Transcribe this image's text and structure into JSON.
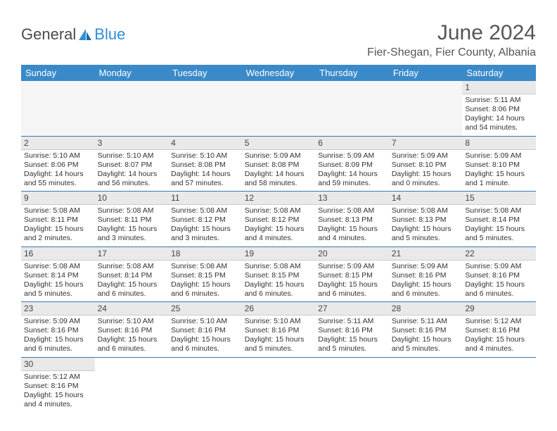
{
  "logo": {
    "text1": "General",
    "text2": "Blue"
  },
  "title": "June 2024",
  "location": "Fier-Shegan, Fier County, Albania",
  "daysOfWeek": [
    "Sunday",
    "Monday",
    "Tuesday",
    "Wednesday",
    "Thursday",
    "Friday",
    "Saturday"
  ],
  "colors": {
    "header_bg": "#3a8ac9",
    "header_fg": "#ffffff",
    "row_border": "#3a7ab0",
    "daynum_bg": "#e9e9e9",
    "text": "#333333"
  },
  "weeks": [
    [
      null,
      null,
      null,
      null,
      null,
      null,
      {
        "n": "1",
        "sunrise": "5:11 AM",
        "sunset": "8:06 PM",
        "daylight": "14 hours and 54 minutes."
      }
    ],
    [
      {
        "n": "2",
        "sunrise": "5:10 AM",
        "sunset": "8:06 PM",
        "daylight": "14 hours and 55 minutes."
      },
      {
        "n": "3",
        "sunrise": "5:10 AM",
        "sunset": "8:07 PM",
        "daylight": "14 hours and 56 minutes."
      },
      {
        "n": "4",
        "sunrise": "5:10 AM",
        "sunset": "8:08 PM",
        "daylight": "14 hours and 57 minutes."
      },
      {
        "n": "5",
        "sunrise": "5:09 AM",
        "sunset": "8:08 PM",
        "daylight": "14 hours and 58 minutes."
      },
      {
        "n": "6",
        "sunrise": "5:09 AM",
        "sunset": "8:09 PM",
        "daylight": "14 hours and 59 minutes."
      },
      {
        "n": "7",
        "sunrise": "5:09 AM",
        "sunset": "8:10 PM",
        "daylight": "15 hours and 0 minutes."
      },
      {
        "n": "8",
        "sunrise": "5:09 AM",
        "sunset": "8:10 PM",
        "daylight": "15 hours and 1 minute."
      }
    ],
    [
      {
        "n": "9",
        "sunrise": "5:08 AM",
        "sunset": "8:11 PM",
        "daylight": "15 hours and 2 minutes."
      },
      {
        "n": "10",
        "sunrise": "5:08 AM",
        "sunset": "8:11 PM",
        "daylight": "15 hours and 3 minutes."
      },
      {
        "n": "11",
        "sunrise": "5:08 AM",
        "sunset": "8:12 PM",
        "daylight": "15 hours and 3 minutes."
      },
      {
        "n": "12",
        "sunrise": "5:08 AM",
        "sunset": "8:12 PM",
        "daylight": "15 hours and 4 minutes."
      },
      {
        "n": "13",
        "sunrise": "5:08 AM",
        "sunset": "8:13 PM",
        "daylight": "15 hours and 4 minutes."
      },
      {
        "n": "14",
        "sunrise": "5:08 AM",
        "sunset": "8:13 PM",
        "daylight": "15 hours and 5 minutes."
      },
      {
        "n": "15",
        "sunrise": "5:08 AM",
        "sunset": "8:14 PM",
        "daylight": "15 hours and 5 minutes."
      }
    ],
    [
      {
        "n": "16",
        "sunrise": "5:08 AM",
        "sunset": "8:14 PM",
        "daylight": "15 hours and 5 minutes."
      },
      {
        "n": "17",
        "sunrise": "5:08 AM",
        "sunset": "8:14 PM",
        "daylight": "15 hours and 6 minutes."
      },
      {
        "n": "18",
        "sunrise": "5:08 AM",
        "sunset": "8:15 PM",
        "daylight": "15 hours and 6 minutes."
      },
      {
        "n": "19",
        "sunrise": "5:08 AM",
        "sunset": "8:15 PM",
        "daylight": "15 hours and 6 minutes."
      },
      {
        "n": "20",
        "sunrise": "5:09 AM",
        "sunset": "8:15 PM",
        "daylight": "15 hours and 6 minutes."
      },
      {
        "n": "21",
        "sunrise": "5:09 AM",
        "sunset": "8:16 PM",
        "daylight": "15 hours and 6 minutes."
      },
      {
        "n": "22",
        "sunrise": "5:09 AM",
        "sunset": "8:16 PM",
        "daylight": "15 hours and 6 minutes."
      }
    ],
    [
      {
        "n": "23",
        "sunrise": "5:09 AM",
        "sunset": "8:16 PM",
        "daylight": "15 hours and 6 minutes."
      },
      {
        "n": "24",
        "sunrise": "5:10 AM",
        "sunset": "8:16 PM",
        "daylight": "15 hours and 6 minutes."
      },
      {
        "n": "25",
        "sunrise": "5:10 AM",
        "sunset": "8:16 PM",
        "daylight": "15 hours and 6 minutes."
      },
      {
        "n": "26",
        "sunrise": "5:10 AM",
        "sunset": "8:16 PM",
        "daylight": "15 hours and 5 minutes."
      },
      {
        "n": "27",
        "sunrise": "5:11 AM",
        "sunset": "8:16 PM",
        "daylight": "15 hours and 5 minutes."
      },
      {
        "n": "28",
        "sunrise": "5:11 AM",
        "sunset": "8:16 PM",
        "daylight": "15 hours and 5 minutes."
      },
      {
        "n": "29",
        "sunrise": "5:12 AM",
        "sunset": "8:16 PM",
        "daylight": "15 hours and 4 minutes."
      }
    ],
    [
      {
        "n": "30",
        "sunrise": "5:12 AM",
        "sunset": "8:16 PM",
        "daylight": "15 hours and 4 minutes."
      },
      null,
      null,
      null,
      null,
      null,
      null
    ]
  ],
  "labels": {
    "sunrise": "Sunrise:",
    "sunset": "Sunset:",
    "daylight": "Daylight:"
  }
}
